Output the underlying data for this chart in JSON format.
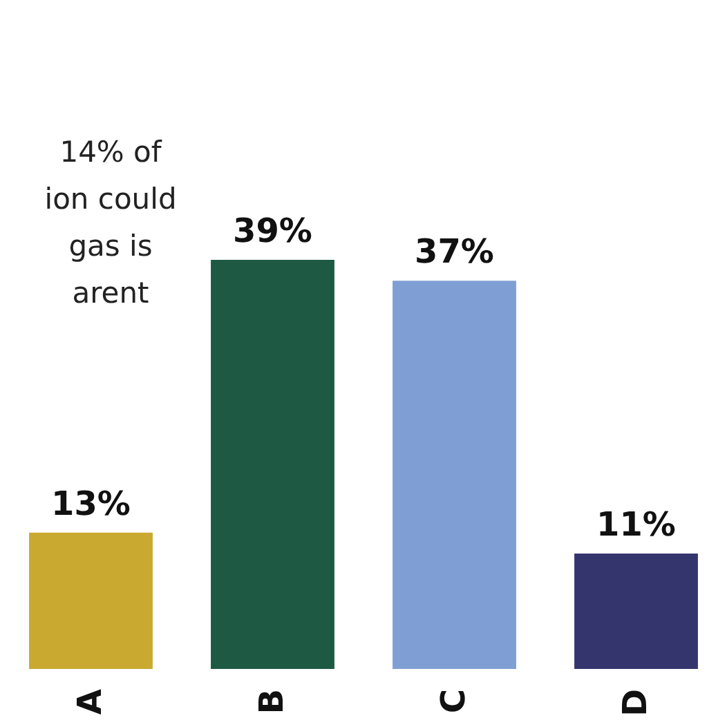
{
  "chart_data": {
    "type": "bar",
    "categories": [
      "A",
      "B",
      "C",
      "D"
    ],
    "values": [
      13,
      39,
      37,
      11
    ],
    "value_labels": [
      "13%",
      "39%",
      "37%",
      "11%"
    ],
    "colors": [
      "#c9a92f",
      "#1e5a43",
      "#7f9fd4",
      "#35356e"
    ],
    "annotations": [
      "14% of\nion could\ngas is\narent"
    ]
  }
}
